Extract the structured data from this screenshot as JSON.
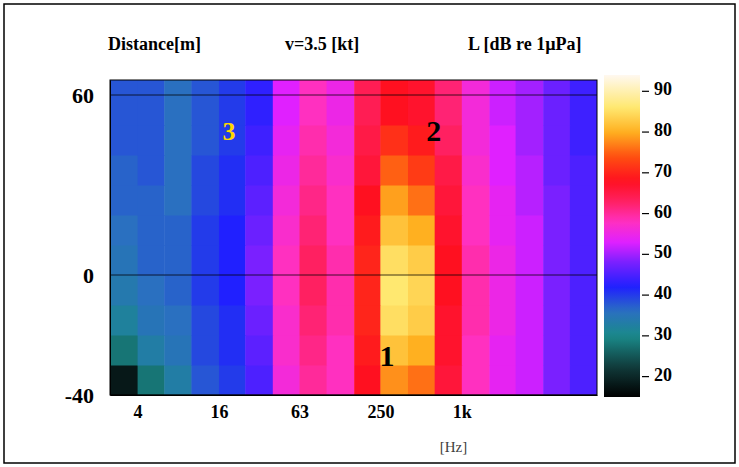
{
  "chart_data": {
    "type": "heatmap",
    "title": "v=3.5 [kt]",
    "y_label": "Distance[m]",
    "x_label": "[Hz]",
    "log": "x",
    "grid": true,
    "xlim": [
      2.5,
      10000
    ],
    "xticks": [
      4,
      16,
      63,
      250,
      {
        "value": 1000,
        "label": "1k"
      }
    ],
    "ylim": [
      -40,
      65
    ],
    "yticks": [
      -40,
      0,
      60
    ],
    "cells": {
      "x_bins": [
        2.5,
        4,
        6.3,
        10,
        16,
        25,
        40,
        63,
        100,
        160,
        250,
        400,
        630,
        1000,
        1600,
        2500,
        4000,
        6300,
        10000
      ],
      "y_bins": [
        -40,
        -30,
        -20,
        -10,
        0,
        10,
        20,
        30,
        40,
        50,
        65
      ],
      "values": [
        [
          18,
          28,
          33,
          38,
          40,
          45,
          56,
          60,
          58,
          68,
          78,
          76,
          66,
          58,
          54,
          52,
          48,
          45
        ],
        [
          28,
          33,
          35,
          39,
          41,
          46,
          57,
          61,
          58,
          69,
          82,
          80,
          67,
          58,
          54,
          52,
          48,
          45
        ],
        [
          32,
          35,
          36,
          39,
          41,
          47,
          57,
          62,
          59,
          70,
          85,
          83,
          67,
          59,
          55,
          52,
          48,
          45
        ],
        [
          34,
          36,
          37,
          40,
          42,
          48,
          58,
          63,
          59,
          70,
          86,
          84,
          68,
          59,
          55,
          52,
          48,
          45
        ],
        [
          35,
          37,
          37,
          40,
          42,
          48,
          58,
          63,
          59,
          70,
          85,
          83,
          68,
          59,
          55,
          52,
          48,
          45
        ],
        [
          36,
          37,
          37,
          40,
          42,
          47,
          57,
          62,
          58,
          69,
          82,
          80,
          67,
          58,
          54,
          52,
          48,
          45
        ],
        [
          37,
          37,
          36,
          39,
          41,
          46,
          56,
          61,
          58,
          68,
          79,
          76,
          66,
          58,
          54,
          51,
          48,
          45
        ],
        [
          37,
          38,
          36,
          39,
          41,
          45,
          55,
          60,
          57,
          66,
          75,
          72,
          65,
          57,
          53,
          51,
          47,
          45
        ],
        [
          38,
          38,
          36,
          38,
          40,
          44,
          54,
          59,
          56,
          65,
          71,
          69,
          63,
          56,
          53,
          50,
          47,
          44
        ],
        [
          38,
          38,
          36,
          38,
          40,
          43,
          53,
          58,
          55,
          64,
          68,
          67,
          62,
          56,
          52,
          50,
          47,
          44
        ]
      ]
    },
    "colorbar": {
      "label": "L [dB re 1µPa]",
      "range": [
        15,
        94
      ],
      "ticks": [
        20,
        30,
        40,
        50,
        60,
        70,
        80,
        90
      ]
    },
    "annotations": [
      {
        "text": "1",
        "x": 280,
        "y": -28,
        "color": "#000000"
      },
      {
        "text": "2",
        "x": 620,
        "y": 47,
        "color": "#000000"
      },
      {
        "text": "3",
        "x": 19,
        "y": 47,
        "color": "#ffd700"
      }
    ]
  }
}
